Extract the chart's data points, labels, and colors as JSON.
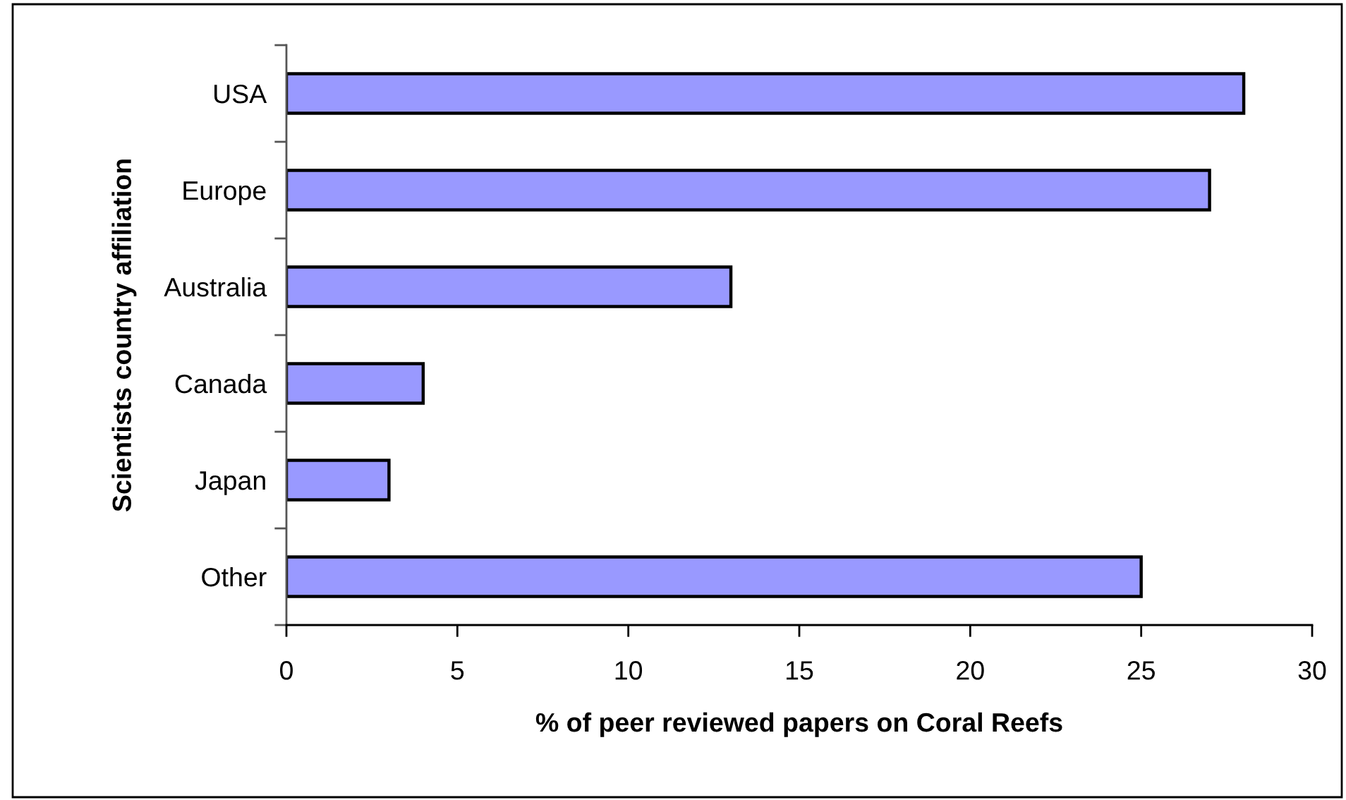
{
  "chart_data": {
    "type": "bar",
    "orientation": "horizontal",
    "categories": [
      "USA",
      "Europe",
      "Australia",
      "Canada",
      "Japan",
      "Other"
    ],
    "values": [
      28,
      27,
      13,
      4,
      3,
      25
    ],
    "color": "#9999ff",
    "xlim": [
      0,
      30
    ],
    "xticks": [
      0,
      5,
      10,
      15,
      20,
      25,
      30
    ],
    "xlabel": "% of peer reviewed papers on Coral Reefs",
    "ylabel": "Scientists country affiliation"
  }
}
